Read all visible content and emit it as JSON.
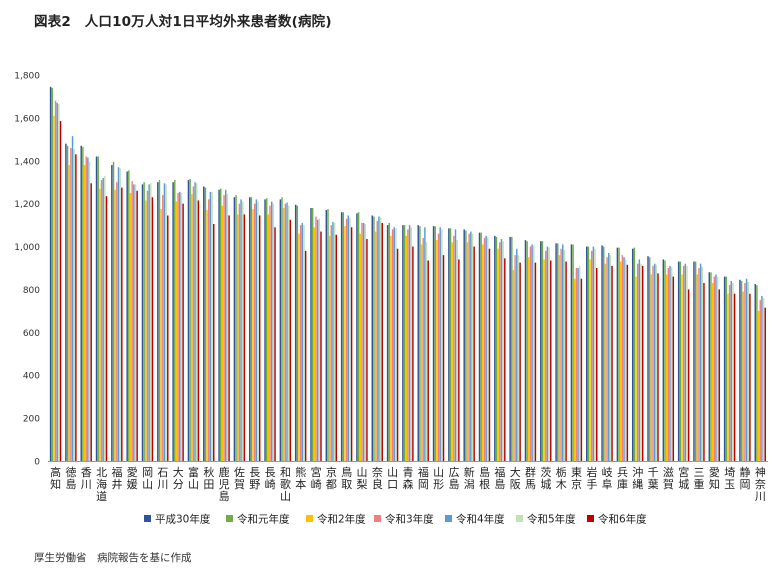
{
  "title": "図表2　人口10万人対1日平均外来患者数(病院)",
  "footer": "厚生労働省　病院報告を基に作成",
  "chart_data": {
    "type": "bar",
    "ylim": [
      0,
      1800
    ],
    "yticks": [
      "0",
      "200",
      "400",
      "600",
      "800",
      "1,000",
      "1,200",
      "1,400",
      "1,600",
      "1,800"
    ],
    "grid": false,
    "legend_position": "bottom",
    "categories": [
      "高知",
      "徳島",
      "香川",
      "北海道",
      "福井",
      "愛媛",
      "岡山",
      "石川",
      "大分",
      "富山",
      "秋田",
      "鹿児島",
      "佐賀",
      "長野",
      "長崎",
      "和歌山",
      "熊本",
      "宮崎",
      "京都",
      "鳥取",
      "山梨",
      "奈良",
      "山口",
      "青森",
      "福岡",
      "山形",
      "広島",
      "新潟",
      "島根",
      "福島",
      "大阪",
      "群馬",
      "茨城",
      "栃木",
      "東京",
      "岩手",
      "岐阜",
      "兵庫",
      "沖縄",
      "千葉",
      "滋賀",
      "宮城",
      "三重",
      "愛知",
      "埼玉",
      "静岡",
      "神奈川"
    ],
    "series": [
      {
        "name": "平成30年度",
        "color": "#2f5597",
        "values": [
          1745,
          1480,
          1470,
          1420,
          1380,
          1350,
          1290,
          1300,
          1300,
          1310,
          1280,
          1265,
          1230,
          1230,
          1220,
          1220,
          1195,
          1180,
          1170,
          1160,
          1155,
          1145,
          1100,
          1100,
          1100,
          1095,
          1085,
          1080,
          1065,
          1050,
          1045,
          1030,
          1025,
          1015,
          1010,
          1000,
          1005,
          995,
          990,
          955,
          940,
          930,
          930,
          880,
          860,
          845,
          825
        ]
      },
      {
        "name": "令和元年度",
        "color": "#70ad47",
        "values": [
          1740,
          1470,
          1465,
          1420,
          1395,
          1355,
          1300,
          1310,
          1310,
          1315,
          1275,
          1270,
          1240,
          1230,
          1225,
          1230,
          1190,
          1180,
          1175,
          1160,
          1160,
          1140,
          1110,
          1100,
          1095,
          1095,
          1085,
          1075,
          1065,
          1045,
          1045,
          1025,
          1025,
          1015,
          1010,
          1000,
          1000,
          995,
          995,
          950,
          935,
          930,
          930,
          880,
          860,
          840,
          820
        ]
      },
      {
        "name": "令和2年度",
        "color": "#ffc000",
        "values": [
          1610,
          1380,
          1380,
          1270,
          1265,
          1250,
          1215,
          1175,
          1210,
          1245,
          1170,
          1190,
          1150,
          1175,
          1150,
          1180,
          1060,
          1090,
          1050,
          1095,
          1060,
          1070,
          1050,
          1050,
          1010,
          1030,
          1020,
          1020,
          1010,
          990,
          890,
          950,
          940,
          960,
          850,
          940,
          920,
          930,
          860,
          870,
          870,
          870,
          870,
          830,
          780,
          790,
          700
        ]
      },
      {
        "name": "令和3年度",
        "color": "#f08080",
        "values": [
          1680,
          1460,
          1420,
          1310,
          1300,
          1305,
          1260,
          1240,
          1250,
          1280,
          1220,
          1240,
          1200,
          1200,
          1190,
          1200,
          1100,
          1140,
          1100,
          1130,
          1110,
          1120,
          1080,
          1080,
          1040,
          1060,
          1050,
          1060,
          1040,
          1020,
          960,
          1000,
          980,
          990,
          900,
          980,
          950,
          960,
          920,
          910,
          900,
          910,
          900,
          860,
          820,
          830,
          750
        ]
      },
      {
        "name": "令和4年度",
        "color": "#5b9bd5",
        "values": [
          1670,
          1515,
          1415,
          1320,
          1370,
          1290,
          1290,
          1295,
          1255,
          1300,
          1255,
          1265,
          1220,
          1220,
          1210,
          1205,
          1110,
          1125,
          1115,
          1145,
          1110,
          1140,
          1090,
          1100,
          1090,
          1090,
          1080,
          1070,
          1050,
          1035,
          990,
          1010,
          1000,
          1010,
          900,
          1000,
          970,
          950,
          940,
          920,
          910,
          920,
          920,
          870,
          840,
          850,
          770
        ]
      },
      {
        "name": "令和5年度",
        "color": "#c5e0b4",
        "values": [
          1665,
          1455,
          1395,
          1330,
          1365,
          1290,
          1295,
          1290,
          1250,
          1295,
          1255,
          1245,
          1210,
          1210,
          1200,
          1190,
          1100,
          1130,
          1110,
          1135,
          1105,
          1135,
          1085,
          1090,
          1020,
          1080,
          1030,
          1060,
          1045,
          1025,
          960,
          1005,
          995,
          985,
          910,
          990,
          960,
          940,
          920,
          915,
          905,
          910,
          905,
          860,
          830,
          835,
          760
        ]
      },
      {
        "name": "令和6年度",
        "color": "#c00000",
        "values": [
          1585,
          1430,
          1295,
          1235,
          1275,
          1260,
          1230,
          1145,
          1200,
          1215,
          1105,
          1145,
          1150,
          1145,
          1090,
          1125,
          980,
          1070,
          1055,
          1090,
          1035,
          1110,
          990,
          1000,
          935,
          960,
          940,
          1000,
          990,
          945,
          925,
          925,
          935,
          930,
          850,
          900,
          910,
          915,
          910,
          875,
          860,
          800,
          830,
          800,
          780,
          780,
          715
        ]
      }
    ]
  }
}
